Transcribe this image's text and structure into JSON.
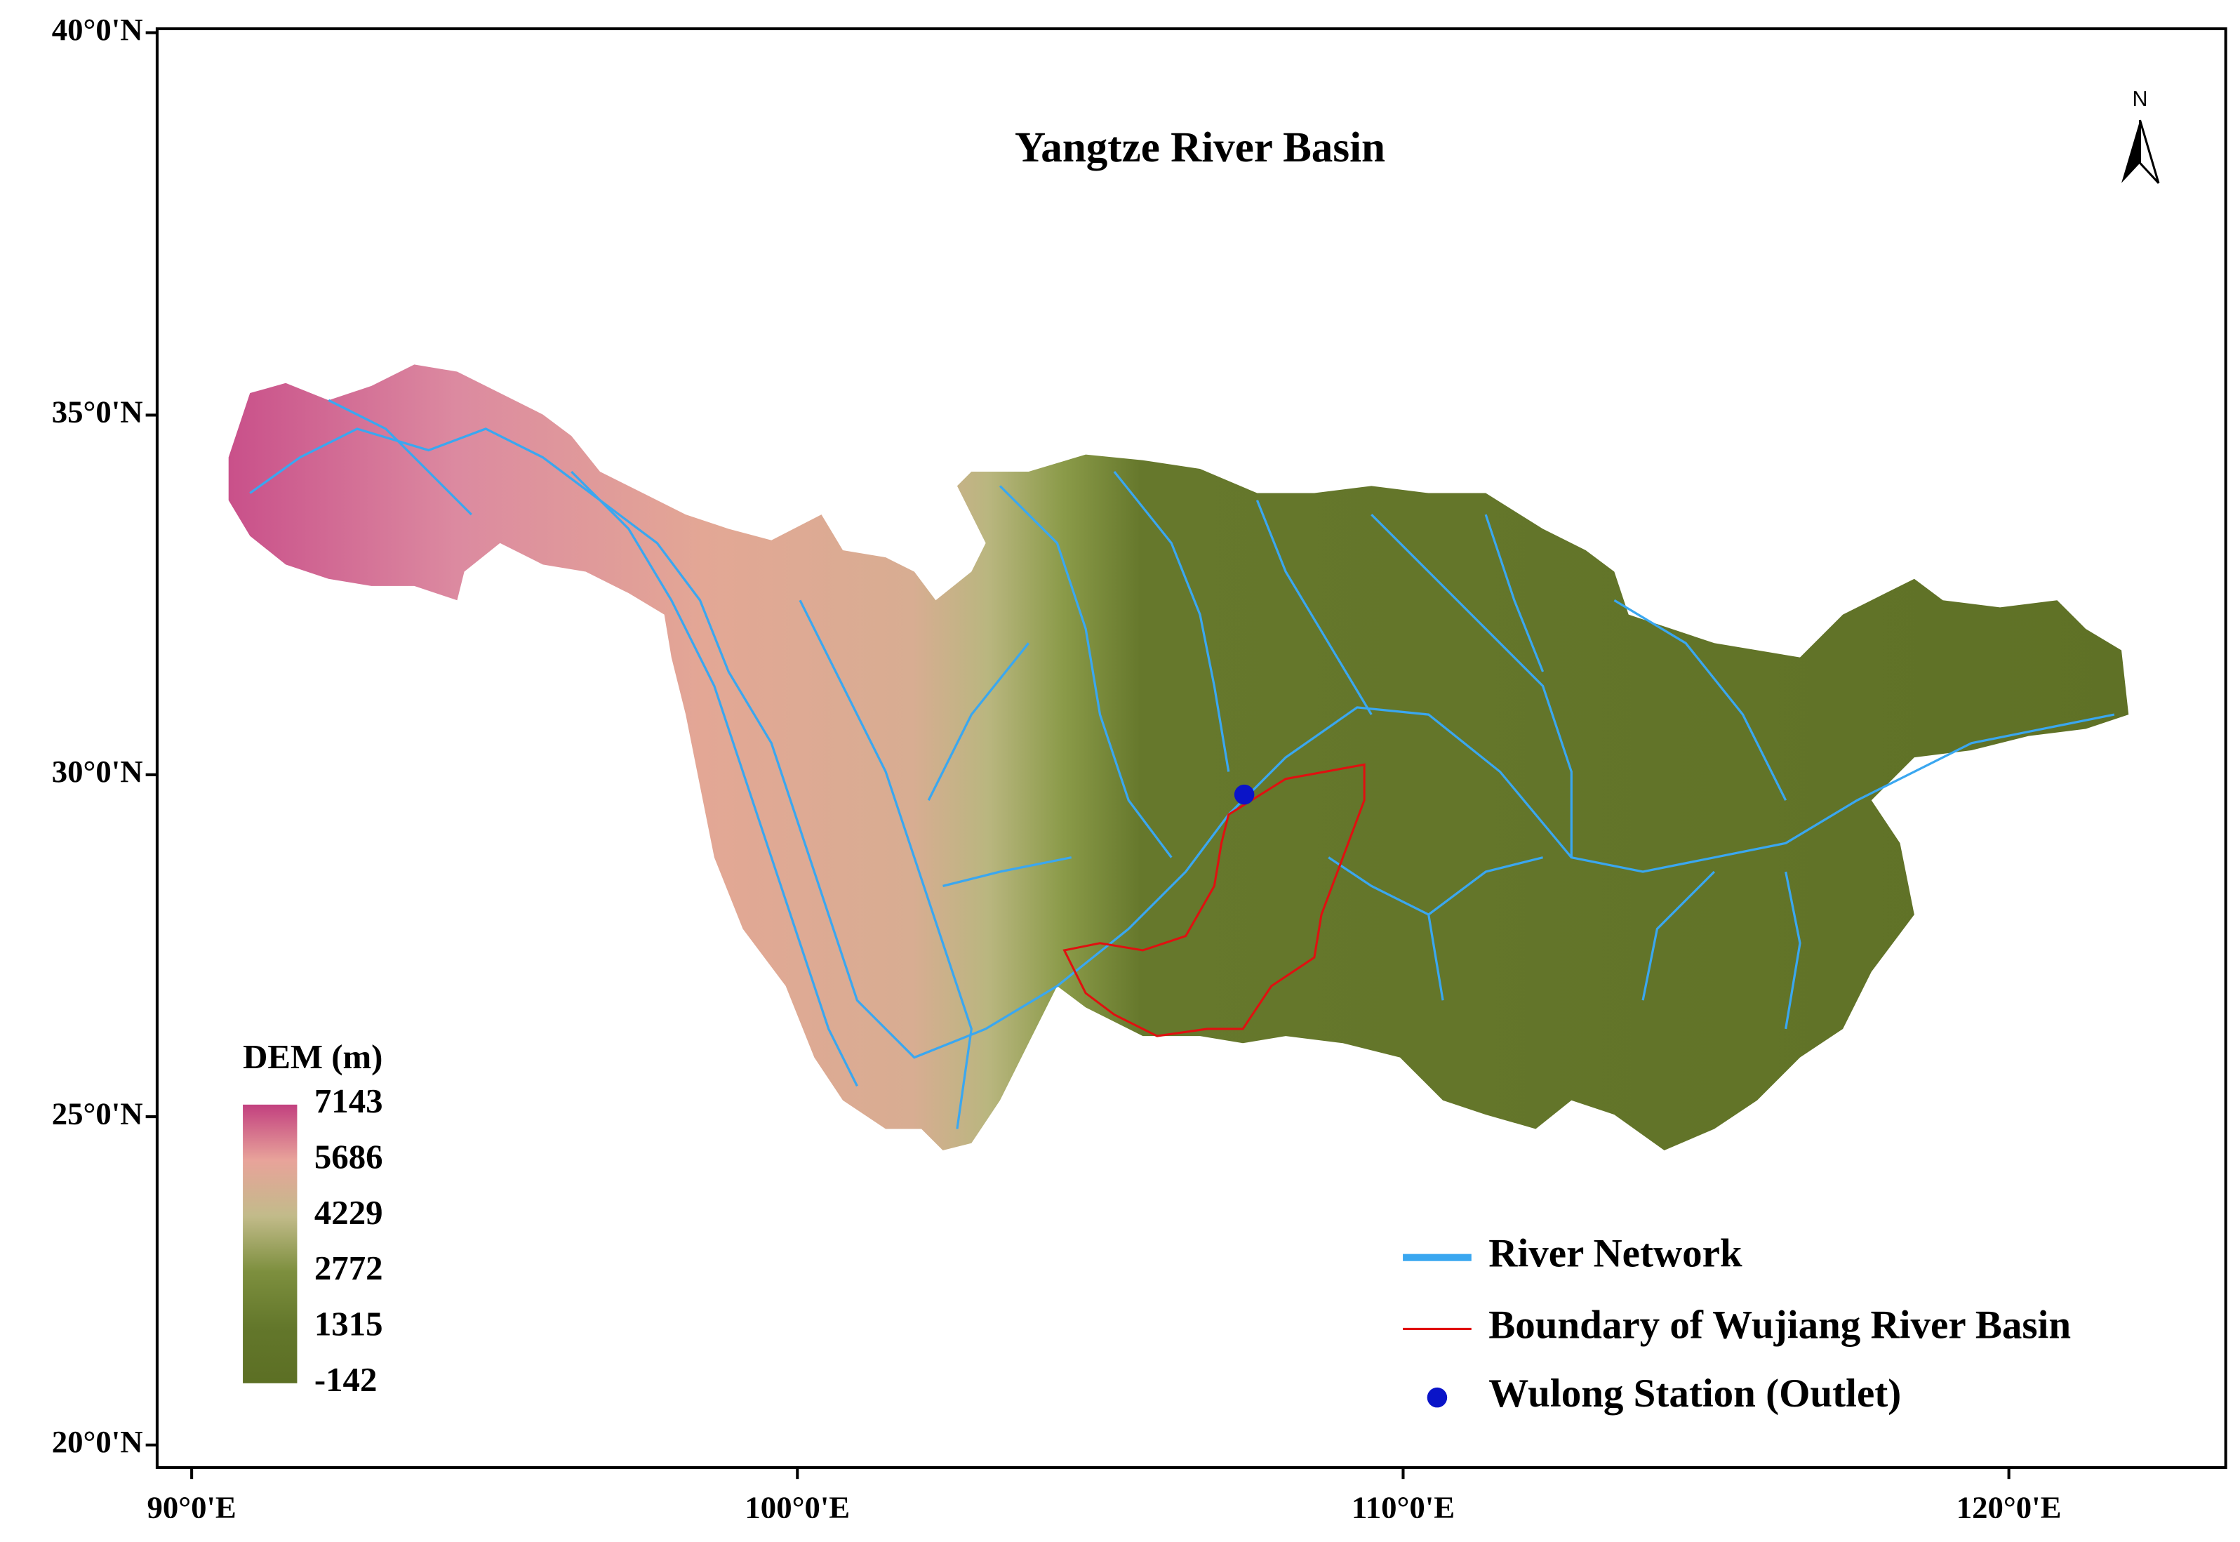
{
  "map": {
    "title": "Yangtze River Basin",
    "north": "N",
    "xlim": [
      89.43,
      123.58
    ],
    "ylim": [
      19.65,
      40.05
    ],
    "xticks": [
      {
        "value": 90,
        "label": "90°0'E"
      },
      {
        "value": 100,
        "label": "100°0'E"
      },
      {
        "value": 110,
        "label": "110°0'E"
      },
      {
        "value": 120,
        "label": "120°0'E"
      }
    ],
    "yticks": [
      {
        "value": 20,
        "label": "20°0'N"
      },
      {
        "value": 25,
        "label": "25°0'N"
      },
      {
        "value": 30,
        "label": "30°0'N"
      },
      {
        "value": 35,
        "label": "35°0'N"
      },
      {
        "value": 40,
        "label": "40°0'N"
      }
    ],
    "dem_legend": {
      "title": "DEM (m)",
      "ticks": [
        7143,
        5686,
        4229,
        2772,
        1315,
        -142
      ]
    },
    "legend": [
      {
        "name": "River Network",
        "color": "#3aa7f0"
      },
      {
        "name": "Boundary of Wujiang River Basin",
        "color": "#e01010"
      },
      {
        "name": "Wulong Station (Outlet)",
        "color": "#0a14c8"
      }
    ]
  }
}
